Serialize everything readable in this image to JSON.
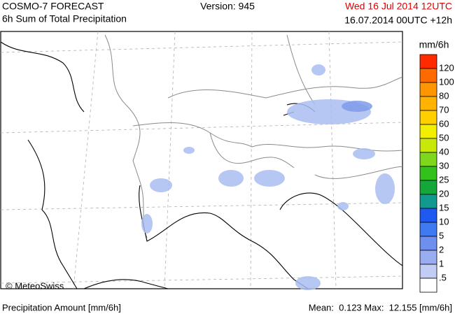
{
  "header": {
    "title": "COSMO-7 FORECAST",
    "subtitle": "6h Sum of Total Precipitation",
    "version": "Version: 945",
    "valid_time": "Wed 16 Jul 2014 12UTC",
    "run_time": "16.07.2014 00UTC +12h"
  },
  "map": {
    "credit": "© MeteoSwiss"
  },
  "legend": {
    "unit": "mm/6h",
    "labels": [
      "120",
      "100",
      "80",
      "70",
      "60",
      "50",
      "40",
      "30",
      "25",
      "20",
      "15",
      "10",
      "5",
      "2",
      "1",
      ".5"
    ],
    "colors": [
      "#ff2a00",
      "#ff6a00",
      "#ff9500",
      "#ffb300",
      "#ffd000",
      "#f2ef00",
      "#c8e80a",
      "#7fd61a",
      "#33c21c",
      "#14a83a",
      "#139a8e",
      "#1e5af0",
      "#3f7af2",
      "#6e8ef0",
      "#9aadf2",
      "#c2cdf5",
      "#ffffff"
    ]
  },
  "footer": {
    "left": "Precipitation Amount [mm/6h]",
    "right": "Mean:  0.123 Max:  12.155 [mm/6h]"
  }
}
